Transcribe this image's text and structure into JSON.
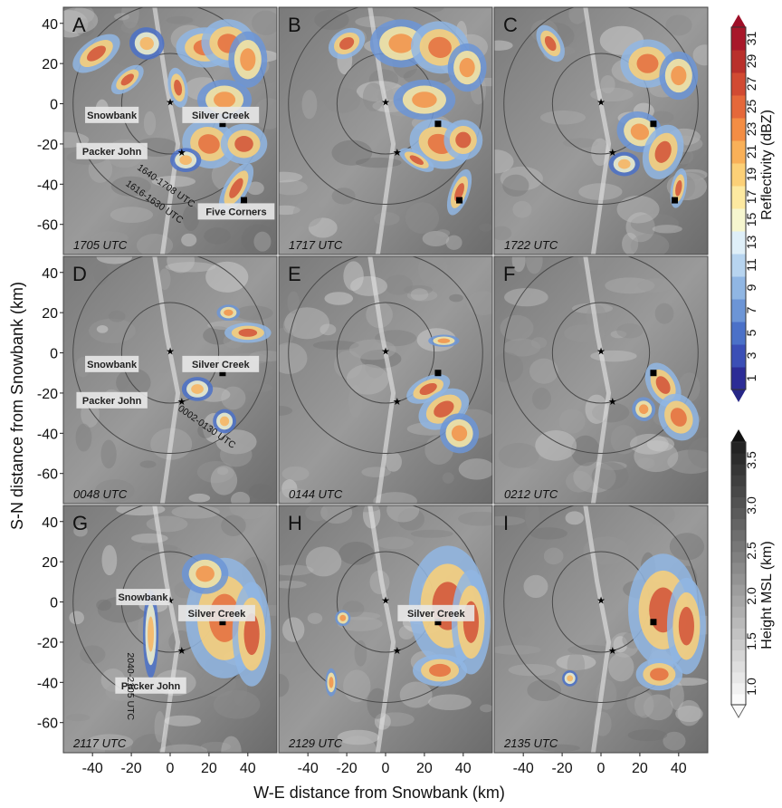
{
  "chart_data": {
    "type": "heatmap",
    "xlabel": "W-E distance from Snowbank (km)",
    "ylabel": "S-N distance from Snowbank (km)",
    "xlim": [
      -55,
      55
    ],
    "ylim": [
      -75,
      48
    ],
    "x_ticks": [
      -40,
      -20,
      0,
      20,
      40
    ],
    "y_ticks": [
      40,
      20,
      0,
      -20,
      -40,
      -60
    ],
    "grid": false,
    "range_ring_radii_km": [
      25,
      50
    ],
    "sites": {
      "snowbank": [
        0,
        1
      ],
      "packer_john": [
        6,
        -24
      ],
      "silver_creek": [
        27,
        -10
      ],
      "five_corners": [
        38,
        -48
      ]
    },
    "colorbar_reflectivity": {
      "label": "Reflectivity (dBZ)",
      "ticks": [
        "1",
        "3",
        "5",
        "7",
        "9",
        "11",
        "13",
        "15",
        "17",
        "19",
        "21",
        "23",
        "25",
        "27",
        "29",
        "31"
      ],
      "colors": [
        "#2c2c96",
        "#3b4fb6",
        "#4b71c8",
        "#6c95d6",
        "#90b6e3",
        "#b7d4ef",
        "#dfeff8",
        "#f6f6cf",
        "#fde9a0",
        "#fcd077",
        "#f9b058",
        "#f38d44",
        "#e5683a",
        "#d14a32",
        "#b9302b",
        "#a8172a"
      ]
    },
    "colorbar_height": {
      "label": "Height MSL (km)",
      "ticks": [
        "1.0",
        "1.5",
        "2.0",
        "2.5",
        "3.0",
        "3.5"
      ],
      "range": [
        0.8,
        3.7
      ]
    },
    "panels": [
      {
        "letter": "A",
        "time": "1705 UTC",
        "echo_cells": [
          [
            -38,
            25,
            14,
            7,
            -35,
            0.65
          ],
          [
            -22,
            12,
            10,
            5,
            -40,
            0.7
          ],
          [
            -12,
            30,
            9,
            8,
            10,
            0.3
          ],
          [
            4,
            8,
            5,
            10,
            -10,
            0.7
          ],
          [
            18,
            28,
            15,
            10,
            0,
            0.45
          ],
          [
            30,
            30,
            14,
            12,
            10,
            0.5
          ],
          [
            40,
            22,
            10,
            14,
            0,
            0.35
          ],
          [
            28,
            2,
            14,
            10,
            0,
            0.4
          ],
          [
            20,
            -20,
            14,
            12,
            20,
            0.45
          ],
          [
            38,
            -20,
            12,
            10,
            0,
            0.6
          ],
          [
            34,
            -42,
            6,
            14,
            30,
            0.65
          ],
          [
            8,
            -28,
            8,
            6,
            0,
            0.3
          ]
        ],
        "site_labels": [
          "snowbank",
          "silver_creek",
          "packer_john",
          "five_corners"
        ],
        "annotations": [
          {
            "text": "1640-1708 UTC",
            "x": -3,
            "y": -42,
            "angle": -35
          },
          {
            "text": "1616-1630 UTC",
            "x": -9,
            "y": -50,
            "angle": -35
          }
        ]
      },
      {
        "letter": "B",
        "time": "1717 UTC",
        "echo_cells": [
          [
            -20,
            30,
            10,
            7,
            -30,
            0.55
          ],
          [
            8,
            30,
            16,
            12,
            0,
            0.4
          ],
          [
            28,
            28,
            15,
            13,
            10,
            0.45
          ],
          [
            42,
            18,
            10,
            12,
            0,
            0.35
          ],
          [
            20,
            2,
            16,
            10,
            0,
            0.35
          ],
          [
            28,
            -20,
            16,
            12,
            20,
            0.45
          ],
          [
            40,
            -18,
            10,
            10,
            0,
            0.55
          ],
          [
            38,
            -44,
            5,
            12,
            20,
            0.7
          ],
          [
            16,
            -28,
            10,
            4,
            30,
            0.6
          ]
        ],
        "site_labels": [],
        "annotations": []
      },
      {
        "letter": "C",
        "time": "1722 UTC",
        "echo_cells": [
          [
            -26,
            30,
            6,
            10,
            -30,
            0.6
          ],
          [
            24,
            20,
            14,
            12,
            0,
            0.45
          ],
          [
            40,
            14,
            10,
            12,
            0,
            0.4
          ],
          [
            20,
            -14,
            12,
            10,
            20,
            0.4
          ],
          [
            32,
            -24,
            10,
            14,
            20,
            0.65
          ],
          [
            40,
            -42,
            4,
            10,
            10,
            0.7
          ],
          [
            12,
            -30,
            8,
            6,
            0,
            0.3
          ]
        ],
        "site_labels": [],
        "annotations": []
      },
      {
        "letter": "D",
        "time": "0048 UTC",
        "echo_cells": [
          [
            40,
            10,
            12,
            5,
            0,
            0.55
          ],
          [
            30,
            20,
            6,
            4,
            0,
            0.35
          ],
          [
            14,
            -18,
            8,
            6,
            0,
            0.25
          ],
          [
            28,
            -34,
            6,
            6,
            0,
            0.3
          ]
        ],
        "site_labels": [
          "snowbank",
          "silver_creek",
          "packer_john"
        ],
        "annotations": [
          {
            "text": "0002-0130 UTC",
            "x": 18,
            "y": -38,
            "angle": -35
          }
        ]
      },
      {
        "letter": "E",
        "time": "0144 UTC",
        "echo_cells": [
          [
            22,
            -18,
            12,
            6,
            -25,
            0.72
          ],
          [
            30,
            -28,
            14,
            9,
            -30,
            0.55
          ],
          [
            38,
            -40,
            10,
            10,
            -20,
            0.4
          ],
          [
            30,
            6,
            8,
            3,
            0,
            0.35
          ]
        ],
        "site_labels": [],
        "annotations": []
      },
      {
        "letter": "F",
        "time": "0212 UTC",
        "echo_cells": [
          [
            32,
            -16,
            8,
            12,
            -30,
            0.72
          ],
          [
            40,
            -32,
            10,
            12,
            -25,
            0.5
          ],
          [
            22,
            -28,
            6,
            6,
            -20,
            0.4
          ]
        ],
        "site_labels": [],
        "annotations": []
      },
      {
        "letter": "G",
        "time": "2117 UTC",
        "echo_cells": [
          [
            28,
            -8,
            20,
            30,
            0,
            0.5
          ],
          [
            42,
            -16,
            10,
            26,
            0,
            0.55
          ],
          [
            18,
            14,
            12,
            10,
            0,
            0.35
          ],
          [
            -10,
            -16,
            4,
            22,
            0,
            0.3
          ]
        ],
        "site_labels": [
          "snowbank",
          "silver_creek",
          "packer_john"
        ],
        "annotations": [
          {
            "text": "2040-2105 UTC",
            "x": -22,
            "y": -42,
            "angle": -90
          }
        ]
      },
      {
        "letter": "H",
        "time": "2129 UTC",
        "echo_cells": [
          [
            32,
            -2,
            20,
            30,
            0,
            0.72
          ],
          [
            44,
            -10,
            10,
            26,
            0,
            0.68
          ],
          [
            28,
            -34,
            14,
            8,
            0,
            0.5
          ],
          [
            -28,
            -40,
            3,
            7,
            0,
            0.4
          ],
          [
            -22,
            -8,
            4,
            4,
            0,
            0.35
          ]
        ],
        "site_labels": [
          "silver_creek"
        ],
        "annotations": []
      },
      {
        "letter": "I",
        "time": "2135 UTC",
        "echo_cells": [
          [
            32,
            -4,
            18,
            28,
            0,
            0.6
          ],
          [
            44,
            -12,
            10,
            24,
            0,
            0.68
          ],
          [
            30,
            -36,
            12,
            8,
            0,
            0.5
          ],
          [
            -16,
            -38,
            4,
            4,
            0,
            0.3
          ]
        ],
        "site_labels": [],
        "annotations": []
      }
    ]
  },
  "site_names": {
    "snowbank": "Snowbank",
    "silver_creek": "Silver Creek",
    "packer_john": "Packer John",
    "five_corners": "Five Corners"
  }
}
